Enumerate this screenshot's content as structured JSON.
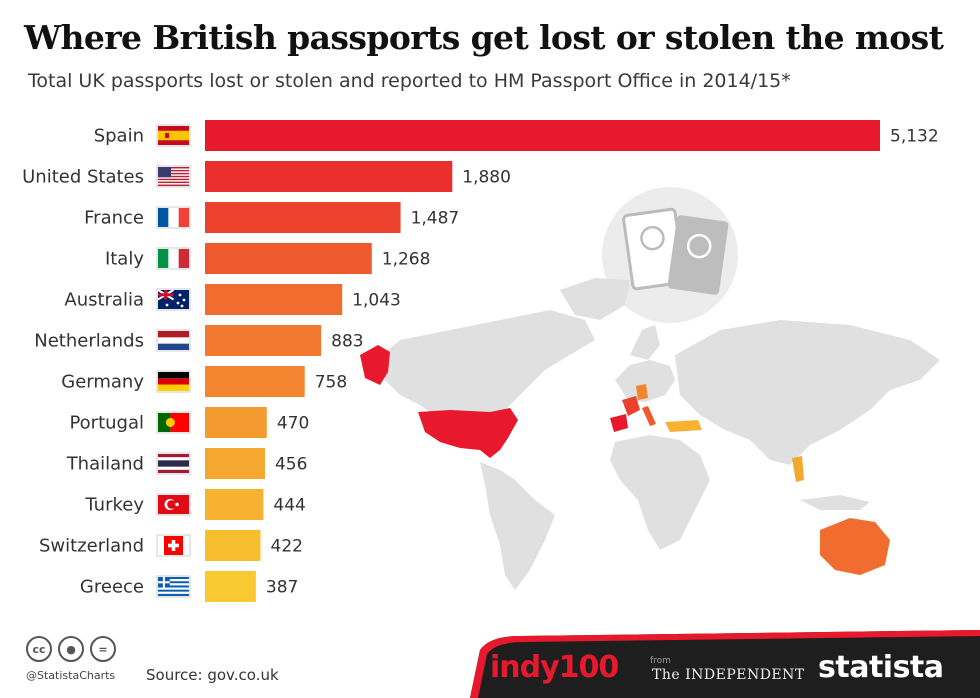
{
  "title": "Where British passports get lost or stolen the most",
  "subtitle": "Total UK passports lost or stolen and reported to HM Passport Office in 2014/15*",
  "chart_data": {
    "type": "bar",
    "orientation": "horizontal",
    "categories": [
      "Spain",
      "United States",
      "France",
      "Italy",
      "Australia",
      "Netherlands",
      "Germany",
      "Portugal",
      "Thailand",
      "Turkey",
      "Switzerland",
      "Greece"
    ],
    "values": [
      5132,
      1880,
      1487,
      1268,
      1043,
      883,
      758,
      470,
      456,
      444,
      422,
      387
    ],
    "value_labels": [
      "5,132",
      "1,880",
      "1,487",
      "1,268",
      "1,043",
      "883",
      "758",
      "470",
      "456",
      "444",
      "422",
      "387"
    ],
    "bar_colors": [
      "#e8192c",
      "#ea2e2c",
      "#ec422d",
      "#ee592e",
      "#f06d2f",
      "#f2792f",
      "#f38530",
      "#f49b30",
      "#f5a830",
      "#f6b230",
      "#f7be30",
      "#f8c930"
    ],
    "xlim": [
      0,
      5132
    ],
    "grid": false,
    "legend": "none"
  },
  "flags": [
    "spain-flag-icon",
    "usa-flag-icon",
    "france-flag-icon",
    "italy-flag-icon",
    "australia-flag-icon",
    "netherlands-flag-icon",
    "germany-flag-icon",
    "portugal-flag-icon",
    "thailand-flag-icon",
    "turkey-flag-icon",
    "switzerland-flag-icon",
    "greece-flag-icon"
  ],
  "footer": {
    "handle": "@StatistaCharts",
    "source": "Source: gov.co.uk",
    "indy_logo": "indy100",
    "from_text": "from",
    "independent_logo": "The INDEPENDENT",
    "statista_logo": "statista"
  }
}
